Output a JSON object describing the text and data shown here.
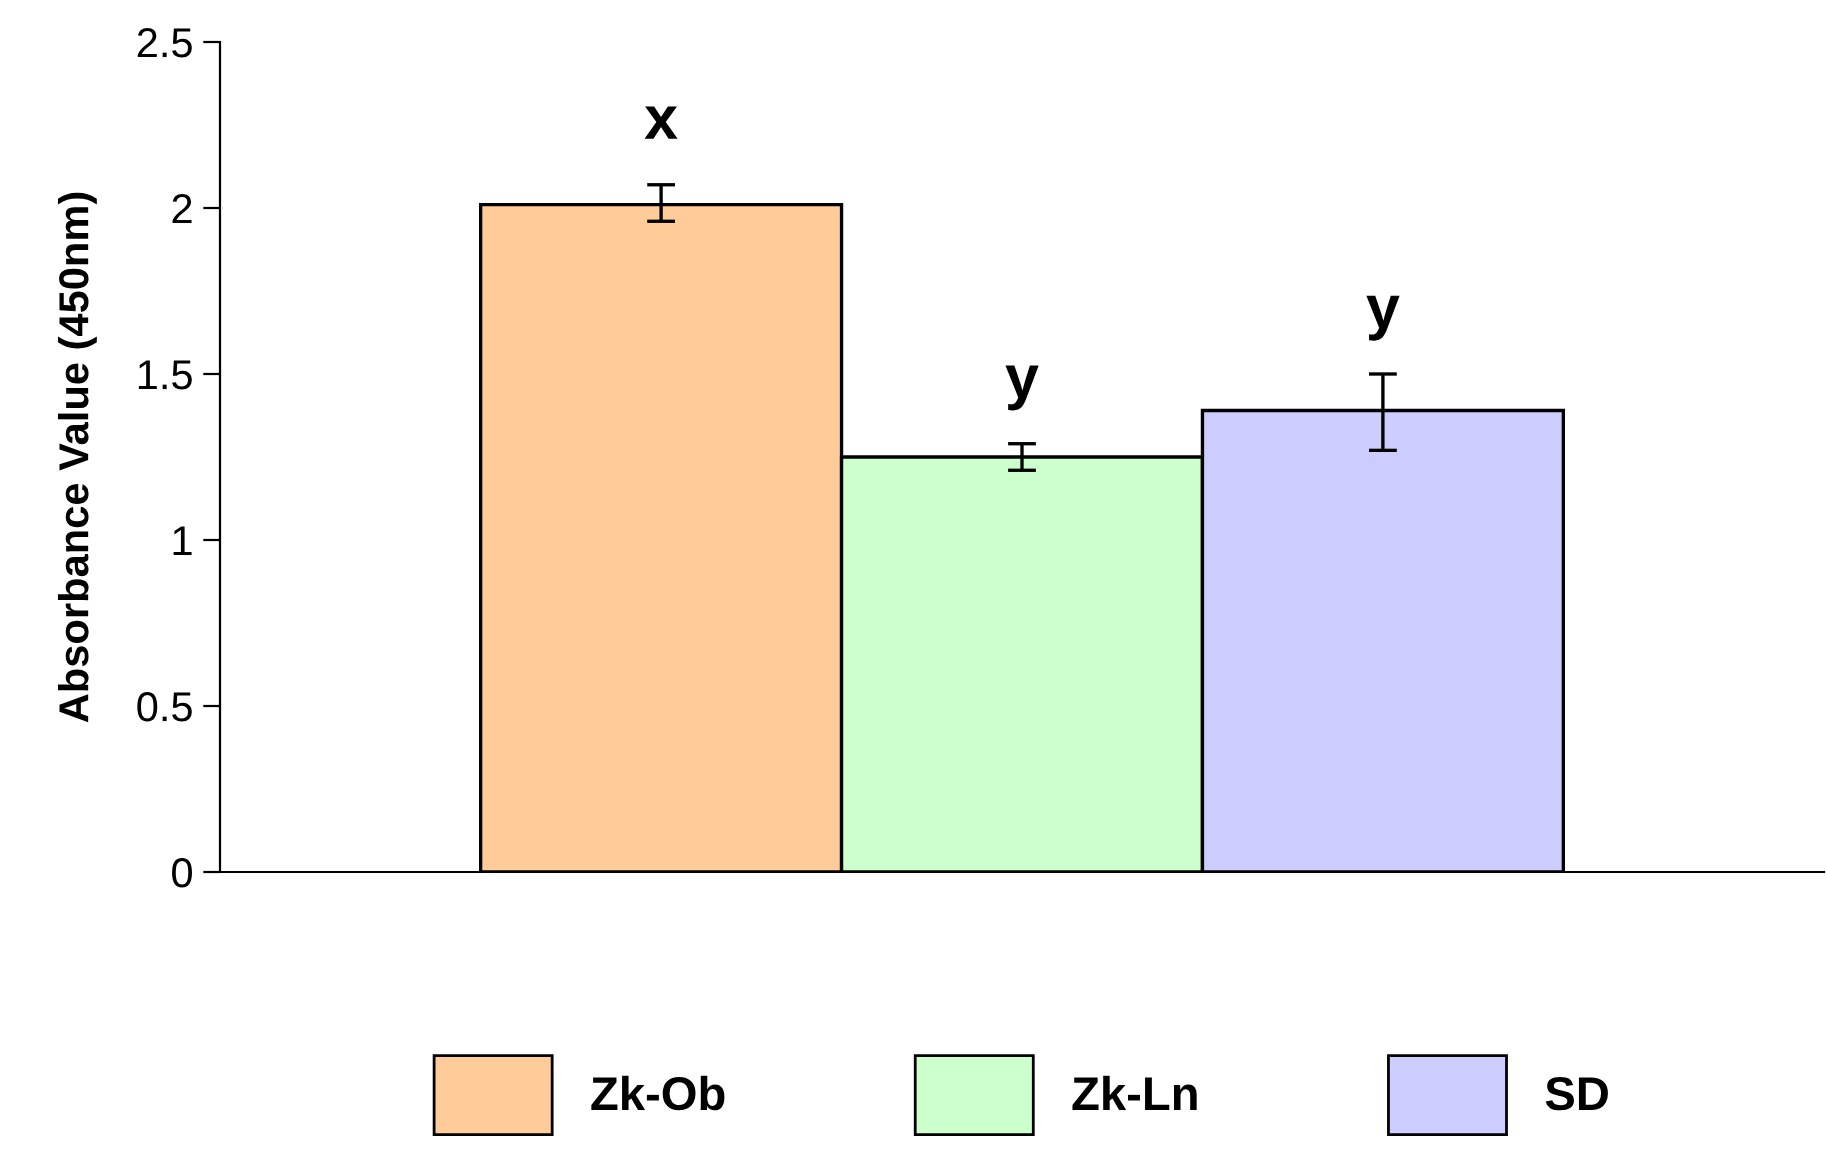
{
  "chart_data": {
    "type": "bar",
    "ylabel": "Absorbance Value (450nm)",
    "categories": [
      null
    ],
    "series": [
      {
        "name": "Zk-Ob",
        "color": "#ffcc99",
        "values": [
          2.01
        ],
        "errors": [
          [
            1.96,
            2.07
          ]
        ]
      },
      {
        "name": "Zk-Ln",
        "color": "#ccffcc",
        "values": [
          1.25
        ],
        "errors": [
          [
            1.21,
            1.29
          ]
        ]
      },
      {
        "name": "SD",
        "color": "#ccccff",
        "values": [
          1.39
        ],
        "errors": [
          [
            1.27,
            1.5
          ]
        ]
      }
    ],
    "ylim": [
      0,
      2.5
    ],
    "yticks": [
      0,
      0.5,
      1,
      1.5,
      2,
      2.5
    ],
    "grid": false,
    "legend": "bottom",
    "annotations": [
      "x",
      "y",
      "y"
    ]
  }
}
